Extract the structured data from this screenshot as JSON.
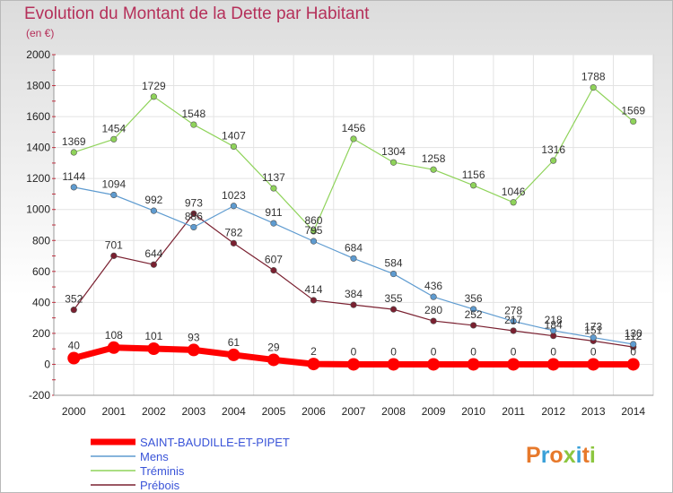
{
  "title": "Evolution du Montant de la Dette par Habitant",
  "subtitle": "(en €)",
  "brand": {
    "text": "Proxiti",
    "colors": [
      "#e7792b",
      "#3aa0d8",
      "#e7792b",
      "#8cc63f",
      "#3aa0d8",
      "#e7792b",
      "#8cc63f"
    ]
  },
  "chart_data": {
    "type": "line",
    "x": [
      "2000",
      "2001",
      "2002",
      "2003",
      "2004",
      "2005",
      "2006",
      "2007",
      "2008",
      "2009",
      "2010",
      "2011",
      "2012",
      "2013",
      "2014"
    ],
    "ylim": [
      -200,
      2000
    ],
    "yticks": [
      "-200",
      "0",
      "200",
      "400",
      "600",
      "800",
      "1000",
      "1200",
      "1400",
      "1600",
      "1800",
      "2000"
    ],
    "grid": true,
    "legend_position": "bottom",
    "series": [
      {
        "name": "SAINT-BAUDILLE-ET-PIPET",
        "color": "#ff0000",
        "width": 7,
        "marker": 7,
        "values": [
          40,
          108,
          101,
          93,
          61,
          29,
          2,
          0,
          0,
          0,
          0,
          0,
          0,
          0,
          0
        ],
        "labels": [
          "40",
          "108",
          "101",
          "93",
          "61",
          "29",
          "2",
          "0",
          "0",
          "0",
          "0",
          "0",
          "0",
          "0",
          "0"
        ]
      },
      {
        "name": "Mens",
        "color": "#5e9bd0",
        "width": 1.2,
        "marker": 3.3,
        "values": [
          1144,
          1094,
          992,
          886,
          1023,
          911,
          795,
          684,
          584,
          436,
          356,
          278,
          218,
          173,
          130
        ],
        "labels": [
          "1144",
          "1094",
          "992",
          "886",
          "1023",
          "911",
          "795",
          "684",
          "584",
          "436",
          "356",
          "278",
          "218",
          "173",
          "130"
        ]
      },
      {
        "name": "Tréminis",
        "color": "#8fd35a",
        "width": 1.2,
        "marker": 3.3,
        "values": [
          1369,
          1454,
          1729,
          1548,
          1407,
          1137,
          860,
          1456,
          1304,
          1258,
          1156,
          1046,
          1316,
          1788,
          1569
        ],
        "labels": [
          "1369",
          "1454",
          "1729",
          "1548",
          "1407",
          "1137",
          "860",
          "1456",
          "1304",
          "1258",
          "1156",
          "1046",
          "1316",
          "1788",
          "1569"
        ]
      },
      {
        "name": "Prébois",
        "color": "#7a2030",
        "width": 1.2,
        "marker": 3.3,
        "values": [
          352,
          701,
          644,
          973,
          782,
          607,
          414,
          384,
          355,
          280,
          252,
          217,
          184,
          151,
          112
        ],
        "labels": [
          "352",
          "701",
          "644",
          "973",
          "782",
          "607",
          "414",
          "384",
          "355",
          "280",
          "252",
          "217",
          "184",
          "151",
          "112"
        ]
      }
    ]
  }
}
